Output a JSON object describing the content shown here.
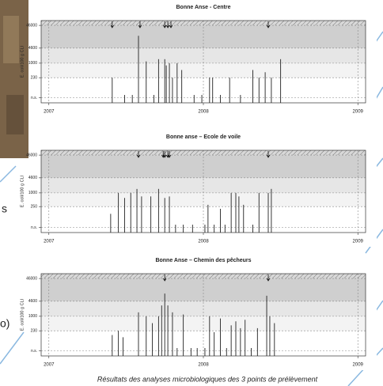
{
  "chart_data": [
    {
      "type": "spike",
      "title": "Bonne Anse - Centre",
      "y_label": "E. coli/100 g CLI",
      "log": true,
      "color": "#222222",
      "xlim": [
        2006.95,
        2009.05
      ],
      "xticks": [
        2007,
        2008,
        2009
      ],
      "ylim": [
        18,
        75000
      ],
      "yticks": [
        {
          "value": 30,
          "label": "n.s."
        },
        230,
        1000,
        4600,
        46000
      ],
      "x": [
        2007.41,
        2007.49,
        2007.54,
        2007.58,
        2007.63,
        2007.68,
        2007.71,
        2007.75,
        2007.76,
        2007.78,
        2007.8,
        2007.83,
        2007.86,
        2007.94,
        2007.99,
        2008.04,
        2008.06,
        2008.11,
        2008.17,
        2008.24,
        2008.32,
        2008.36,
        2008.4,
        2008.44,
        2008.5
      ],
      "values": [
        230,
        40,
        40,
        16000,
        1200,
        40,
        1500,
        1500,
        800,
        1000,
        230,
        1000,
        500,
        40,
        40,
        230,
        230,
        40,
        230,
        40,
        500,
        230,
        400,
        230,
        1500
      ],
      "events": [
        2007.41,
        2007.59,
        2007.75,
        2007.77,
        2007.79,
        2008.42
      ]
    },
    {
      "type": "spike",
      "title": "Bonne anse – Ecole de voile",
      "y_label": "E. coli/100 g CLI",
      "log": true,
      "color": "#222222",
      "xlim": [
        2006.95,
        2009.05
      ],
      "xticks": [
        2007,
        2008,
        2009
      ],
      "ylim": [
        18,
        75000
      ],
      "yticks": [
        {
          "value": 30,
          "label": "n.s."
        },
        250,
        1000,
        4600,
        46000
      ],
      "x": [
        2007.4,
        2007.45,
        2007.49,
        2007.53,
        2007.57,
        2007.6,
        2007.66,
        2007.71,
        2007.75,
        2007.78,
        2007.82,
        2007.87,
        2007.93,
        2008.01,
        2008.03,
        2008.07,
        2008.11,
        2008.14,
        2008.18,
        2008.21,
        2008.23,
        2008.26,
        2008.32,
        2008.36,
        2008.42,
        2008.44
      ],
      "values": [
        120,
        1000,
        600,
        1000,
        1500,
        700,
        700,
        1500,
        600,
        700,
        40,
        40,
        40,
        40,
        300,
        40,
        200,
        40,
        1000,
        1000,
        700,
        300,
        40,
        1000,
        1000,
        1500
      ],
      "events": [
        2007.58,
        2007.74,
        2007.75,
        2007.77,
        2007.78,
        2008.42
      ]
    },
    {
      "type": "spike",
      "title": "Bonne Anse – Chemin des pêcheurs",
      "y_label": "E. coli/100 g CLI",
      "log": true,
      "color": "#222222",
      "xlim": [
        2006.95,
        2009.05
      ],
      "xticks": [
        2007,
        2008,
        2009
      ],
      "ylim": [
        18,
        75000
      ],
      "yticks": [
        {
          "value": 30,
          "label": "n.s."
        },
        230,
        1000,
        4600,
        46000
      ],
      "x": [
        2007.41,
        2007.45,
        2007.48,
        2007.58,
        2007.63,
        2007.67,
        2007.71,
        2007.73,
        2007.75,
        2007.77,
        2007.8,
        2007.83,
        2007.87,
        2007.92,
        2007.96,
        2008.01,
        2008.04,
        2008.07,
        2008.11,
        2008.15,
        2008.18,
        2008.21,
        2008.24,
        2008.27,
        2008.31,
        2008.35,
        2008.41,
        2008.43,
        2008.46
      ],
      "values": [
        150,
        230,
        120,
        1500,
        1000,
        500,
        1000,
        3000,
        10000,
        3000,
        1500,
        40,
        1200,
        40,
        40,
        40,
        1000,
        200,
        800,
        40,
        400,
        600,
        300,
        700,
        40,
        300,
        8000,
        1000,
        500
      ],
      "events": [
        2007.75,
        2008.42
      ]
    }
  ],
  "caption": "Résultats des analyses microbiologiques des 3 points de prélèvement",
  "slide_fragments": [
    "s",
    "o)"
  ]
}
